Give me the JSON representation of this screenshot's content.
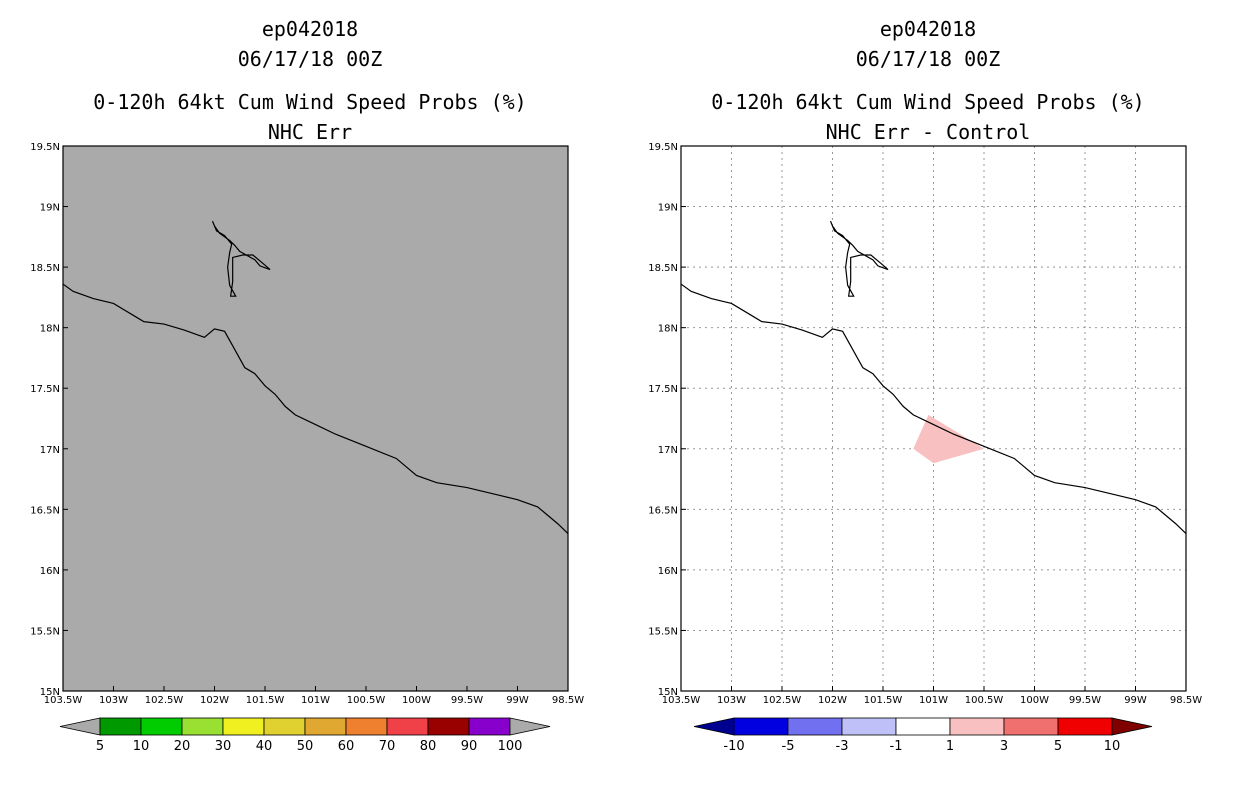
{
  "chart_data": [
    {
      "type": "map",
      "storm_id": "ep042018",
      "datetime": "06/17/18 00Z",
      "title": "0-120h 64kt Cum Wind Speed Probs (%)",
      "subtitle": "NHC Err",
      "lon_range": [
        -103.5,
        -98.5
      ],
      "lat_range": [
        15,
        19.5
      ],
      "lon_ticks": [
        "103.5W",
        "103W",
        "102.5W",
        "102W",
        "101.5W",
        "101W",
        "100.5W",
        "100W",
        "99.5W",
        "99W",
        "98.5W"
      ],
      "lat_ticks": [
        "15N",
        "15.5N",
        "16N",
        "16.5N",
        "17N",
        "17.5N",
        "18N",
        "18.5N",
        "19N",
        "19.5N"
      ],
      "background": "#aaaaaa",
      "gridlines": false,
      "colorbar": {
        "labels": [
          "5",
          "10",
          "20",
          "30",
          "40",
          "50",
          "60",
          "70",
          "80",
          "90",
          "100"
        ],
        "colors": [
          "#009900",
          "#00cc00",
          "#99e033",
          "#f0f020",
          "#e0d030",
          "#e0a830",
          "#ee8030",
          "#f04048",
          "#990000",
          "#8800cc"
        ],
        "end_colors": [
          "#aaaaaa",
          "#aaaaaa"
        ]
      }
    },
    {
      "type": "map",
      "storm_id": "ep042018",
      "datetime": "06/17/18 00Z",
      "title": "0-120h 64kt Cum Wind Speed Probs (%)",
      "subtitle": "NHC Err - Control",
      "lon_range": [
        -103.5,
        -98.5
      ],
      "lat_range": [
        15,
        19.5
      ],
      "lon_ticks": [
        "103.5W",
        "103W",
        "102.5W",
        "102W",
        "101.5W",
        "101W",
        "100.5W",
        "100W",
        "99.5W",
        "99W",
        "98.5W"
      ],
      "lat_ticks": [
        "15N",
        "15.5N",
        "16N",
        "16.5N",
        "17N",
        "17.5N",
        "18N",
        "18.5N",
        "19N",
        "19.5N"
      ],
      "background": "#ffffff",
      "gridlines": true,
      "shaded_region": {
        "range": "1 to 3",
        "color": "#f8c0c0",
        "polygon_lonlat": [
          [
            -101.05,
            17.28
          ],
          [
            -100.5,
            17.0
          ],
          [
            -101.0,
            16.88
          ],
          [
            -101.2,
            17.0
          ]
        ]
      },
      "colorbar": {
        "labels": [
          "-10",
          "-5",
          "-3",
          "-1",
          "1",
          "3",
          "5",
          "10"
        ],
        "colors": [
          "#0000e0",
          "#7070f0",
          "#c0c0f8",
          "#ffffff",
          "#f8c0c0",
          "#f07070",
          "#f00000"
        ],
        "end_colors": [
          "#000090",
          "#800000"
        ]
      }
    }
  ],
  "coastline_lonlat": [
    [
      -103.5,
      18.36
    ],
    [
      -103.4,
      18.3
    ],
    [
      -103.2,
      18.24
    ],
    [
      -103.0,
      18.2
    ],
    [
      -102.8,
      18.1
    ],
    [
      -102.7,
      18.05
    ],
    [
      -102.5,
      18.03
    ],
    [
      -102.3,
      17.98
    ],
    [
      -102.1,
      17.92
    ],
    [
      -102.0,
      17.99
    ],
    [
      -101.9,
      17.97
    ],
    [
      -101.8,
      17.82
    ],
    [
      -101.7,
      17.67
    ],
    [
      -101.6,
      17.62
    ],
    [
      -101.5,
      17.52
    ],
    [
      -101.4,
      17.45
    ],
    [
      -101.3,
      17.35
    ],
    [
      -101.2,
      17.28
    ],
    [
      -101.0,
      17.2
    ],
    [
      -100.8,
      17.12
    ],
    [
      -100.5,
      17.02
    ],
    [
      -100.2,
      16.92
    ],
    [
      -100.1,
      16.85
    ],
    [
      -100.0,
      16.78
    ],
    [
      -99.8,
      16.72
    ],
    [
      -99.5,
      16.68
    ],
    [
      -99.2,
      16.62
    ],
    [
      -99.0,
      16.58
    ],
    [
      -98.9,
      16.55
    ],
    [
      -98.8,
      16.52
    ],
    [
      -98.7,
      16.45
    ],
    [
      -98.6,
      16.38
    ],
    [
      -98.5,
      16.3
    ]
  ],
  "lake_lonlat": [
    [
      -102.0,
      18.84
    ],
    [
      -101.95,
      18.78
    ],
    [
      -101.85,
      18.72
    ],
    [
      -101.8,
      18.68
    ],
    [
      -101.75,
      18.63
    ],
    [
      -101.6,
      18.56
    ],
    [
      -101.55,
      18.51
    ],
    [
      -101.45,
      18.48
    ],
    [
      -101.52,
      18.53
    ],
    [
      -101.62,
      18.6
    ],
    [
      -101.72,
      18.6
    ],
    [
      -101.82,
      18.58
    ],
    [
      -101.82,
      18.38
    ],
    [
      -101.84,
      18.26
    ],
    [
      -101.79,
      18.26
    ],
    [
      -101.85,
      18.35
    ],
    [
      -101.87,
      18.5
    ],
    [
      -101.85,
      18.62
    ],
    [
      -101.83,
      18.69
    ],
    [
      -101.9,
      18.76
    ],
    [
      -101.98,
      18.8
    ],
    [
      -102.02,
      18.88
    ],
    [
      -102.0,
      18.84
    ]
  ]
}
